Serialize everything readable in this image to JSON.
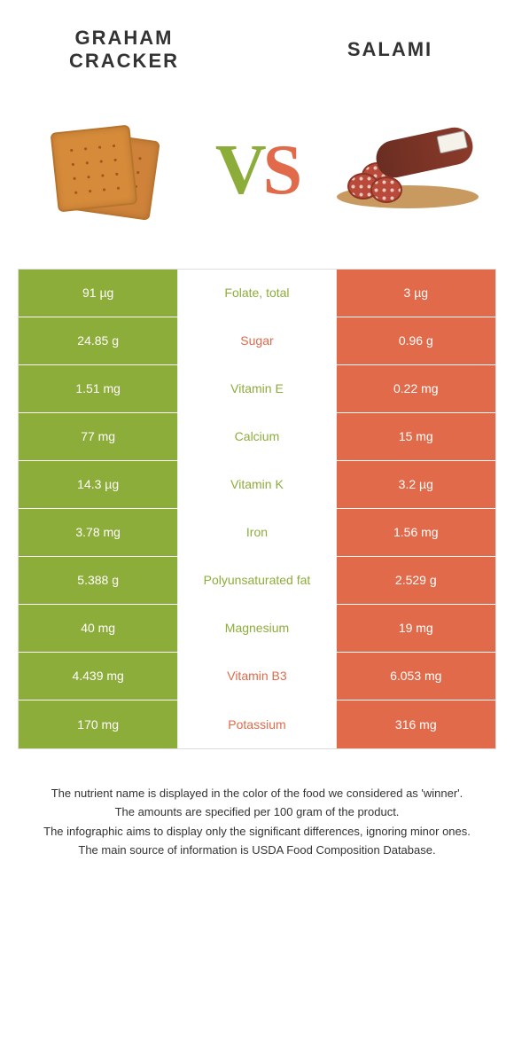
{
  "colors": {
    "left": "#8dad3a",
    "right": "#e06a4a",
    "bg": "#ffffff"
  },
  "header": {
    "left_title": "Graham cracker",
    "right_title": "Salami",
    "vs_v": "V",
    "vs_s": "S"
  },
  "rows": [
    {
      "left": "91 µg",
      "label": "Folate, total",
      "right": "3 µg",
      "winner": "left"
    },
    {
      "left": "24.85 g",
      "label": "Sugar",
      "right": "0.96 g",
      "winner": "right"
    },
    {
      "left": "1.51 mg",
      "label": "Vitamin E",
      "right": "0.22 mg",
      "winner": "left"
    },
    {
      "left": "77 mg",
      "label": "Calcium",
      "right": "15 mg",
      "winner": "left"
    },
    {
      "left": "14.3 µg",
      "label": "Vitamin K",
      "right": "3.2 µg",
      "winner": "left"
    },
    {
      "left": "3.78 mg",
      "label": "Iron",
      "right": "1.56 mg",
      "winner": "left"
    },
    {
      "left": "5.388 g",
      "label": "Polyunsaturated fat",
      "right": "2.529 g",
      "winner": "left"
    },
    {
      "left": "40 mg",
      "label": "Magnesium",
      "right": "19 mg",
      "winner": "left"
    },
    {
      "left": "4.439 mg",
      "label": "Vitamin B3",
      "right": "6.053 mg",
      "winner": "right"
    },
    {
      "left": "170 mg",
      "label": "Potassium",
      "right": "316 mg",
      "winner": "right"
    }
  ],
  "footnotes": [
    "The nutrient name is displayed in the color of the food we considered as 'winner'.",
    "The amounts are specified per 100 gram of the product.",
    "The infographic aims to display only the significant differences, ignoring minor ones.",
    "The main source of information is USDA Food Composition Database."
  ]
}
